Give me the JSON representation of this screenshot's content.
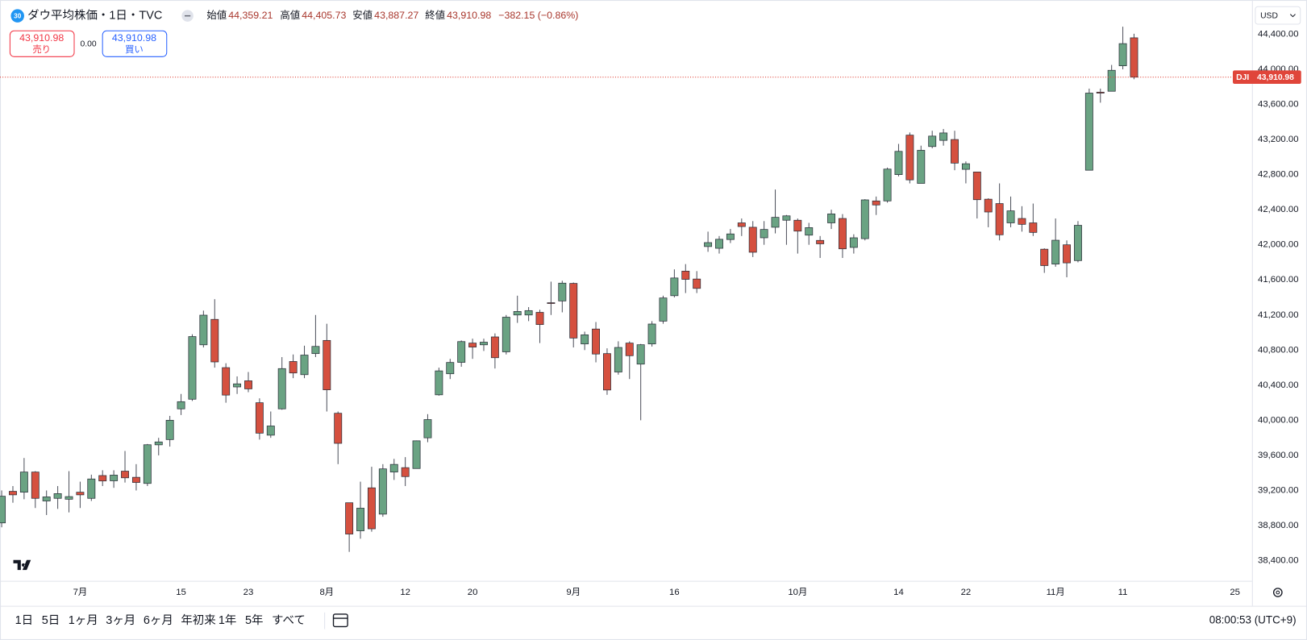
{
  "header": {
    "badge": "30",
    "open_label": "始値",
    "open": "44,359.21",
    "high_label": "高値",
    "high": "44,405.73",
    "low_label": "安値",
    "low": "43,887.27",
    "close_label": "終値",
    "close": "43,910.98",
    "change": "−382.15 (−0.86%)"
  },
  "trade": {
    "sell_price": "43,910.98",
    "sell": "売り",
    "spread": "0.00",
    "buy_price": "43,910.98",
    "buy": "買い"
  },
  "currency": "USD",
  "toolbar": {
    "ranges": [
      "1日",
      "5日",
      "1ヶ月",
      "3ヶ月",
      "6ヶ月",
      "年初来",
      "1年",
      "5年",
      "すべて"
    ],
    "clock": "08:00:53 (UTC+9)"
  },
  "chart_data": {
    "type": "candlestick",
    "title": "ダウ平均株価・1日・TVC",
    "symbol": "DJI",
    "last_value_label": "43,910.98",
    "up_color": "#6aa383",
    "down_color": "#d5503f",
    "border_color": "#2a2e39",
    "wick_color": "#50535e",
    "last_line_color": "#e0453a",
    "grid": false,
    "xlim": [
      -0.149,
      111.52
    ],
    "xticks": [
      {
        "value": 7,
        "label": "7月"
      },
      {
        "value": 16,
        "label": "15"
      },
      {
        "value": 22,
        "label": "23"
      },
      {
        "value": 29,
        "label": "8月"
      },
      {
        "value": 36,
        "label": "12"
      },
      {
        "value": 42,
        "label": "20"
      },
      {
        "value": 51,
        "label": "9月"
      },
      {
        "value": 60,
        "label": "16"
      },
      {
        "value": 71,
        "label": "10月"
      },
      {
        "value": 80,
        "label": "14"
      },
      {
        "value": 86,
        "label": "22"
      },
      {
        "value": 94,
        "label": "11月"
      },
      {
        "value": 100,
        "label": "11"
      },
      {
        "value": 110,
        "label": "25"
      }
    ],
    "ylim": [
      38170,
      44790
    ],
    "yticks": [
      {
        "value": 38400,
        "label": "38,400.00"
      },
      {
        "value": 38800,
        "label": "38,800.00"
      },
      {
        "value": 39200,
        "label": "39,200.00"
      },
      {
        "value": 39600,
        "label": "39,600.00"
      },
      {
        "value": 40000,
        "label": "40,000.00"
      },
      {
        "value": 40400,
        "label": "40,400.00"
      },
      {
        "value": 40800,
        "label": "40,800.00"
      },
      {
        "value": 41200,
        "label": "41,200.00"
      },
      {
        "value": 41600,
        "label": "41,600.00"
      },
      {
        "value": 42000,
        "label": "42,000.00"
      },
      {
        "value": 42400,
        "label": "42,400.00"
      },
      {
        "value": 42800,
        "label": "42,800.00"
      },
      {
        "value": 43200,
        "label": "43,200.00"
      },
      {
        "value": 43600,
        "label": "43,600.00"
      },
      {
        "value": 44000,
        "label": "44,000.00"
      },
      {
        "value": 44400,
        "label": "44,400.00"
      }
    ],
    "open": [
      38830,
      39190,
      39180,
      39410,
      39080,
      39110,
      39100,
      39180,
      39110,
      39370,
      39310,
      39420,
      39350,
      39280,
      39720,
      39780,
      40130,
      40240,
      40860,
      41150,
      40600,
      40380,
      40450,
      40200,
      39830,
      40130,
      40670,
      40520,
      40760,
      40910,
      40080,
      39060,
      38740,
      39230,
      38930,
      39410,
      39460,
      39450,
      39800,
      40290,
      40530,
      40660,
      40880,
      40860,
      40950,
      40780,
      41200,
      41200,
      41230,
      41340,
      41360,
      41560,
      40870,
      41040,
      40760,
      40550,
      40880,
      40640,
      40870,
      41130,
      41420,
      41700,
      41610,
      41980,
      41960,
      42060,
      42250,
      42200,
      42080,
      42200,
      42280,
      42280,
      42110,
      42050,
      42250,
      42300,
      41970,
      42070,
      42500,
      42500,
      42800,
      43250,
      42700,
      43120,
      43190,
      43200,
      42860,
      42830,
      42520,
      42470,
      42250,
      42300,
      42250,
      41950,
      41780,
      42000,
      41820,
      42850,
      43740,
      43750,
      44040,
      44359.21
    ],
    "high": [
      39200,
      39250,
      39570,
      39420,
      39200,
      39250,
      39420,
      39300,
      39380,
      39430,
      39430,
      39650,
      39500,
      39730,
      39800,
      40050,
      40300,
      40980,
      41250,
      41380,
      40650,
      40500,
      40550,
      40250,
      40100,
      40720,
      40750,
      40850,
      41200,
      41100,
      40100,
      39060,
      39300,
      39470,
      39500,
      39560,
      39580,
      39770,
      40070,
      40600,
      40700,
      40910,
      40930,
      40930,
      40990,
      41200,
      41420,
      41290,
      41260,
      41580,
      41590,
      41570,
      41010,
      41120,
      40820,
      40900,
      40900,
      40870,
      41130,
      41420,
      41720,
      41780,
      41700,
      42150,
      42100,
      42180,
      42300,
      42270,
      42270,
      42630,
      42340,
      42300,
      42250,
      42100,
      42400,
      42350,
      42120,
      42520,
      42550,
      42880,
      43150,
      43280,
      43130,
      43300,
      43320,
      43300,
      42950,
      42830,
      42530,
      42700,
      42550,
      42440,
      42470,
      41960,
      42300,
      42050,
      42270,
      43780,
      43780,
      44050,
      44486,
      44405.73
    ],
    "low": [
      38780,
      39060,
      39100,
      39000,
      38920,
      38990,
      38950,
      39000,
      39080,
      39250,
      39230,
      39290,
      39200,
      39250,
      39600,
      39700,
      40060,
      40220,
      40830,
      40600,
      40200,
      40300,
      40320,
      39780,
      39800,
      40120,
      40480,
      40480,
      40720,
      40100,
      39500,
      38500,
      38650,
      38730,
      38900,
      39320,
      39250,
      39450,
      39750,
      40280,
      40470,
      40610,
      40700,
      40790,
      40590,
      40750,
      41110,
      41130,
      40880,
      41200,
      41230,
      40830,
      40800,
      40660,
      40290,
      40520,
      40470,
      40000,
      40840,
      41100,
      41400,
      41450,
      41450,
      41920,
      41900,
      42020,
      42100,
      41860,
      42000,
      42130,
      42000,
      41900,
      42000,
      41850,
      42180,
      41850,
      41900,
      42050,
      42340,
      42480,
      42780,
      42700,
      42700,
      43100,
      43130,
      42850,
      42700,
      42300,
      42200,
      42050,
      42200,
      42150,
      42100,
      41680,
      41750,
      41630,
      41800,
      42850,
      43620,
      43750,
      44000,
      43887.27
    ],
    "close": [
      39134,
      39150,
      39410,
      39110,
      39127,
      39164,
      39130,
      39150,
      39331,
      39308,
      39375,
      39344,
      39291,
      39721,
      39753,
      40000,
      40212,
      40954,
      41198,
      40665,
      40287,
      40415,
      40358,
      39853,
      39935,
      40589,
      40539,
      40743,
      40842,
      40347,
      39737,
      38703,
      38998,
      38763,
      39446,
      39497,
      39358,
      39766,
      40008,
      40563,
      40659,
      40897,
      40834,
      40890,
      40713,
      41175,
      41240,
      41250,
      41091,
      41335,
      41563,
      40937,
      40974,
      40755,
      40345,
      40830,
      40736,
      40861,
      41097,
      41394,
      41622,
      41606,
      41503,
      42025,
      42063,
      42124,
      42208,
      41915,
      42175,
      42313,
      42330,
      42156,
      42196,
      42011,
      42352,
      41954,
      42080,
      42512,
      42454,
      42863,
      43065,
      42740,
      43077,
      43239,
      43275,
      42931,
      42924,
      42514,
      42374,
      42114,
      42387,
      42233,
      42141,
      41763,
      42052,
      41794,
      42222,
      43729,
      43729,
      43989,
      44293,
      43910.98
    ]
  }
}
